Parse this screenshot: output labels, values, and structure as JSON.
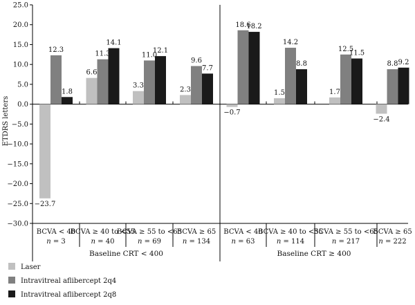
{
  "chart_data": {
    "type": "bar",
    "ylabel": "ETDRS letters",
    "ylim": [
      -30,
      25
    ],
    "yticks": [
      "25.0",
      "20.0",
      "15.0",
      "10.0",
      "5.0",
      "0.0",
      "−5.0",
      "−10.0",
      "−15.0",
      "−20.0",
      "−25.0",
      "−30.0"
    ],
    "ytick_values": [
      25,
      20,
      15,
      10,
      5,
      0,
      -5,
      -10,
      -15,
      -20,
      -25,
      -30
    ],
    "grid": false,
    "legend_placement": "bottom-left",
    "colors": [
      "#c0c0c0",
      "#808080",
      "#1a1a1a"
    ],
    "series": [
      {
        "name": "Laser",
        "values": [
          -23.7,
          6.6,
          3.3,
          2.3,
          -0.7,
          1.5,
          1.7,
          -2.4
        ]
      },
      {
        "name": "Intravitreal aflibercept 2q4",
        "values": [
          12.3,
          11.3,
          11.0,
          9.6,
          18.6,
          14.2,
          12.5,
          8.8
        ]
      },
      {
        "name": "Intravitreal aflibercept 2q8",
        "values": [
          1.8,
          14.1,
          12.1,
          7.7,
          18.2,
          8.8,
          11.5,
          9.2
        ]
      }
    ],
    "value_labels": [
      [
        "−23.7",
        "6.6",
        "3.3",
        "2.3",
        "−0.7",
        "1.5",
        "1.7",
        "−2.4"
      ],
      [
        "12.3",
        "11.3",
        "11.0",
        "9.6",
        "18.6",
        "14.2",
        "12.5",
        "8.8"
      ],
      [
        "1.8",
        "14.1",
        "12.1",
        "7.7",
        "18.2",
        "8.8",
        "11.5",
        "9.2"
      ]
    ],
    "categories": [
      {
        "line1": "BCVA < 40",
        "n_prefix": "n",
        "n_value": " = 3"
      },
      {
        "line1": "BCVA ≥ 40 to <55",
        "n_prefix": "n",
        "n_value": " = 40"
      },
      {
        "line1": "BCVA ≥ 55 to <65",
        "n_prefix": "n",
        "n_value": " = 69"
      },
      {
        "line1": "BCVA ≥ 65",
        "n_prefix": "n",
        "n_value": " = 134"
      },
      {
        "line1": "BCVA < 40",
        "n_prefix": "n",
        "n_value": " = 63"
      },
      {
        "line1": "BCVA ≥ 40 to <55",
        "n_prefix": "n",
        "n_value": " = 114"
      },
      {
        "line1": "BCVA ≥ 55 to <65",
        "n_prefix": "n",
        "n_value": " = 217"
      },
      {
        "line1": "BCVA ≥ 65",
        "n_prefix": "n",
        "n_value": " = 222"
      }
    ],
    "groups": [
      "Baseline CRT < 400",
      "Baseline CRT ≥ 400"
    ]
  }
}
